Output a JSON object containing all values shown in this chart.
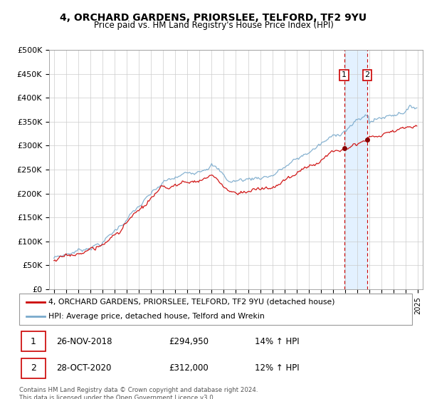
{
  "title": "4, ORCHARD GARDENS, PRIORSLEE, TELFORD, TF2 9YU",
  "subtitle": "Price paid vs. HM Land Registry's House Price Index (HPI)",
  "ylim": [
    0,
    500000
  ],
  "yticks": [
    0,
    50000,
    100000,
    150000,
    200000,
    250000,
    300000,
    350000,
    400000,
    450000,
    500000
  ],
  "ytick_labels": [
    "£0",
    "£50K",
    "£100K",
    "£150K",
    "£200K",
    "£250K",
    "£300K",
    "£350K",
    "£400K",
    "£450K",
    "£500K"
  ],
  "red_color": "#cc0000",
  "blue_color": "#7aaacc",
  "vline1_x": 2018.92,
  "vline2_x": 2020.83,
  "sale1_price": 294950,
  "sale2_price": 312000,
  "legend_label_red": "4, ORCHARD GARDENS, PRIORSLEE, TELFORD, TF2 9YU (detached house)",
  "legend_label_blue": "HPI: Average price, detached house, Telford and Wrekin",
  "footnote": "Contains HM Land Registry data © Crown copyright and database right 2024.\nThis data is licensed under the Open Government Licence v3.0.",
  "background_color": "#ffffff",
  "grid_color": "#cccccc",
  "shade_color": "#ddeeff",
  "xlim_left": 1994.6,
  "xlim_right": 2025.4
}
